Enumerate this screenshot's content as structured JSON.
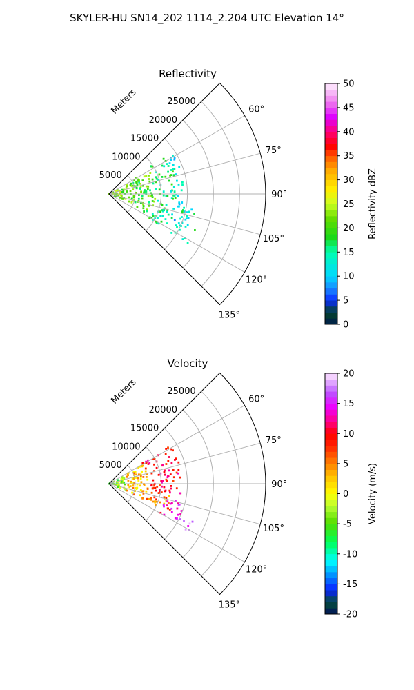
{
  "figure": {
    "title": "SKYLER-HU  SN14_202  1114_2.204 UTC Elevation 14°"
  },
  "chart_data": [
    {
      "type": "polar-sector-scan",
      "title": "Reflectivity",
      "range_axis_label": "Meters",
      "range_ticks": [
        "5000",
        "10000",
        "15000",
        "20000",
        "25000"
      ],
      "range_max": 30000,
      "azimuth_ticks": [
        "60°",
        "75°",
        "90°",
        "105°",
        "120°",
        "135°"
      ],
      "azimuth_range": [
        45,
        135
      ],
      "colorbar": {
        "label": "Reflectivity dBZ",
        "min": 0,
        "max": 50,
        "ticks": [
          "0",
          "5",
          "10",
          "15",
          "20",
          "25",
          "30",
          "35",
          "40",
          "45",
          "50"
        ]
      },
      "echo_regions": [
        {
          "az": [
            63,
            112
          ],
          "range": [
            0,
            5000
          ],
          "value": 22
        },
        {
          "az": [
            58,
            118
          ],
          "range": [
            5000,
            9000
          ],
          "value": 20
        },
        {
          "az": [
            56,
            122
          ],
          "range": [
            9000,
            13000
          ],
          "value": 16
        },
        {
          "az": [
            58,
            116
          ],
          "range": [
            13000,
            14500
          ],
          "value": 12
        },
        {
          "az": [
            100,
            122
          ],
          "range": [
            14000,
            18000
          ],
          "value": 14
        }
      ]
    },
    {
      "type": "polar-sector-scan",
      "title": "Velocity",
      "range_axis_label": "Meters",
      "range_ticks": [
        "5000",
        "10000",
        "15000",
        "20000",
        "25000"
      ],
      "range_max": 30000,
      "azimuth_ticks": [
        "60°",
        "75°",
        "90°",
        "105°",
        "120°",
        "135°"
      ],
      "azimuth_range": [
        45,
        135
      ],
      "colorbar": {
        "label": "Velocity (m/s)",
        "min": -20,
        "max": 20,
        "ticks": [
          "-20",
          "-15",
          "-10",
          "-5",
          "0",
          "5",
          "10",
          "15",
          "20"
        ]
      },
      "echo_regions": [
        {
          "az": [
            63,
            112
          ],
          "range": [
            0,
            3500
          ],
          "value": -4
        },
        {
          "az": [
            60,
            115
          ],
          "range": [
            3500,
            7500
          ],
          "value": 3
        },
        {
          "az": [
            58,
            100
          ],
          "range": [
            7500,
            14000
          ],
          "value": 10
        },
        {
          "az": [
            100,
            115
          ],
          "range": [
            7500,
            13000
          ],
          "value": 6
        },
        {
          "az": [
            104,
            120
          ],
          "range": [
            11000,
            15000
          ],
          "value": 14
        },
        {
          "az": [
            114,
            122
          ],
          "range": [
            15000,
            18000
          ],
          "value": 16
        }
      ]
    }
  ]
}
